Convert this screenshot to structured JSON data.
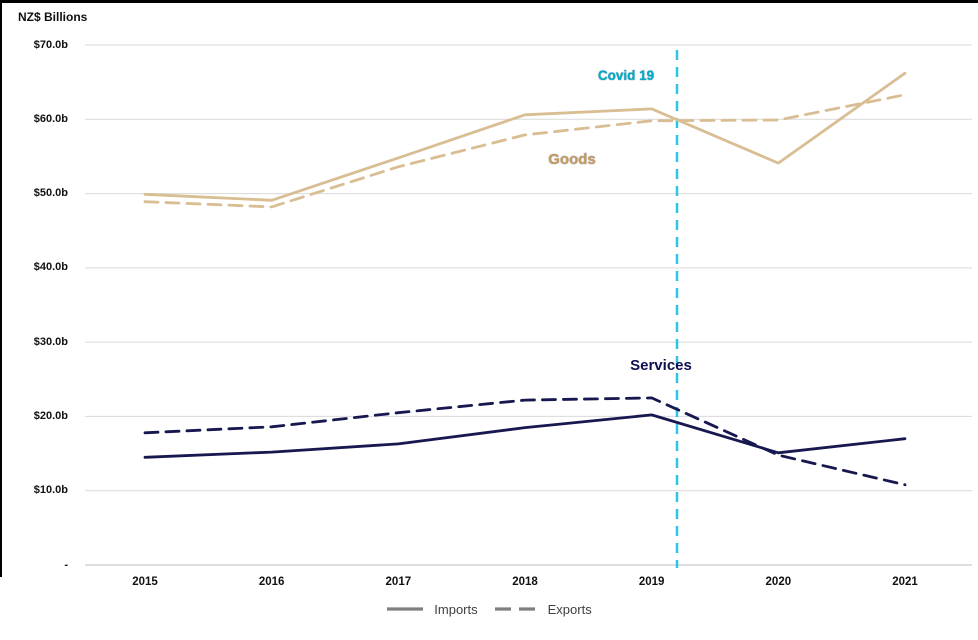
{
  "page": {
    "units_label": "NZ$ Billions"
  },
  "chart_data": {
    "type": "line",
    "title": "NZ$ Billions",
    "x": [
      2015,
      2016,
      2017,
      2018,
      2019,
      2020,
      2021
    ],
    "series": [
      {
        "name": "Goods Imports",
        "group": "Goods",
        "line_style": "solid",
        "color": "#D9BD93",
        "values": [
          49.9,
          49.1,
          54.8,
          60.6,
          61.4,
          54.1,
          66.2
        ]
      },
      {
        "name": "Goods Exports",
        "group": "Goods",
        "line_style": "dashed",
        "color": "#D9BD93",
        "values": [
          48.9,
          48.2,
          53.6,
          57.9,
          59.8,
          59.9,
          63.3
        ]
      },
      {
        "name": "Services Imports",
        "group": "Services",
        "line_style": "solid",
        "color": "#181850",
        "values": [
          14.5,
          15.2,
          16.3,
          18.5,
          20.2,
          15.1,
          17.0
        ]
      },
      {
        "name": "Services Exports",
        "group": "Services",
        "line_style": "dashed",
        "color": "#181850",
        "values": [
          17.8,
          18.6,
          20.5,
          22.2,
          22.5,
          14.8,
          10.8
        ]
      }
    ],
    "ylim": [
      0,
      70
    ],
    "ytick_step": 10,
    "ytick_labels": [
      "$70.0b",
      "$60.0b",
      "$50.0b",
      "$40.0b",
      "$30.0b",
      "$20.0b",
      "$10.0b",
      "-"
    ],
    "xtick_labels": [
      "2015",
      "2016",
      "2017",
      "2018",
      "2019",
      "2020",
      "2021"
    ],
    "grid": true,
    "gridline_color": "#D9D9D9",
    "axis_line_color": "#BFBFBF",
    "annotations": {
      "covid_line": {
        "label": "Covid 19",
        "x": 2019.2,
        "color": "#2EC4E6"
      },
      "goods_label": {
        "text": "Goods",
        "color": "#C89C5D"
      },
      "services_label": {
        "text": "Services",
        "color": "#0D0F4E"
      }
    },
    "legend": [
      {
        "label": "Imports",
        "line_style": "solid",
        "swatch_color": "#7F7F7F"
      },
      {
        "label": "Exports",
        "line_style": "dashed",
        "swatch_color": "#7F7F7F"
      }
    ],
    "legend_position": "bottom"
  }
}
